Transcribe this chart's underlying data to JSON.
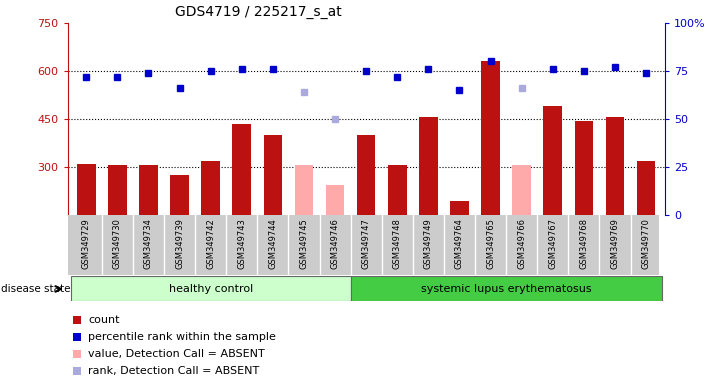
{
  "title": "GDS4719 / 225217_s_at",
  "samples": [
    "GSM349729",
    "GSM349730",
    "GSM349734",
    "GSM349739",
    "GSM349742",
    "GSM349743",
    "GSM349744",
    "GSM349745",
    "GSM349746",
    "GSM349747",
    "GSM349748",
    "GSM349749",
    "GSM349764",
    "GSM349765",
    "GSM349766",
    "GSM349767",
    "GSM349768",
    "GSM349769",
    "GSM349770"
  ],
  "counts": [
    310,
    305,
    305,
    275,
    320,
    435,
    400,
    null,
    null,
    400,
    305,
    455,
    195,
    630,
    null,
    490,
    445,
    455,
    320
  ],
  "absent_values": [
    null,
    null,
    null,
    null,
    null,
    null,
    null,
    305,
    245,
    null,
    null,
    null,
    null,
    null,
    305,
    null,
    null,
    null,
    null
  ],
  "pct_ranks": [
    72,
    72,
    74,
    66,
    75,
    76,
    76,
    null,
    null,
    75,
    72,
    76,
    65,
    80,
    null,
    76,
    75,
    77,
    74
  ],
  "absent_pct_ranks": [
    null,
    null,
    null,
    null,
    null,
    null,
    null,
    64,
    50,
    null,
    null,
    null,
    null,
    null,
    66,
    null,
    null,
    null,
    null
  ],
  "healthy_count": 9,
  "ylim_left": [
    150,
    750
  ],
  "ylim_right": [
    0,
    100
  ],
  "bar_color_present": "#bb1111",
  "bar_color_absent": "#ffaaaa",
  "dot_color_present": "#0000cc",
  "dot_color_absent": "#aaaadd",
  "healthy_bg": "#ccffcc",
  "lupus_bg": "#44cc44",
  "axis_bg": "#ffffff",
  "tick_label_bg": "#cccccc",
  "dotted_line_color": "#000000",
  "right_axis_color": "#0000cc",
  "left_axis_color": "#bb1111"
}
